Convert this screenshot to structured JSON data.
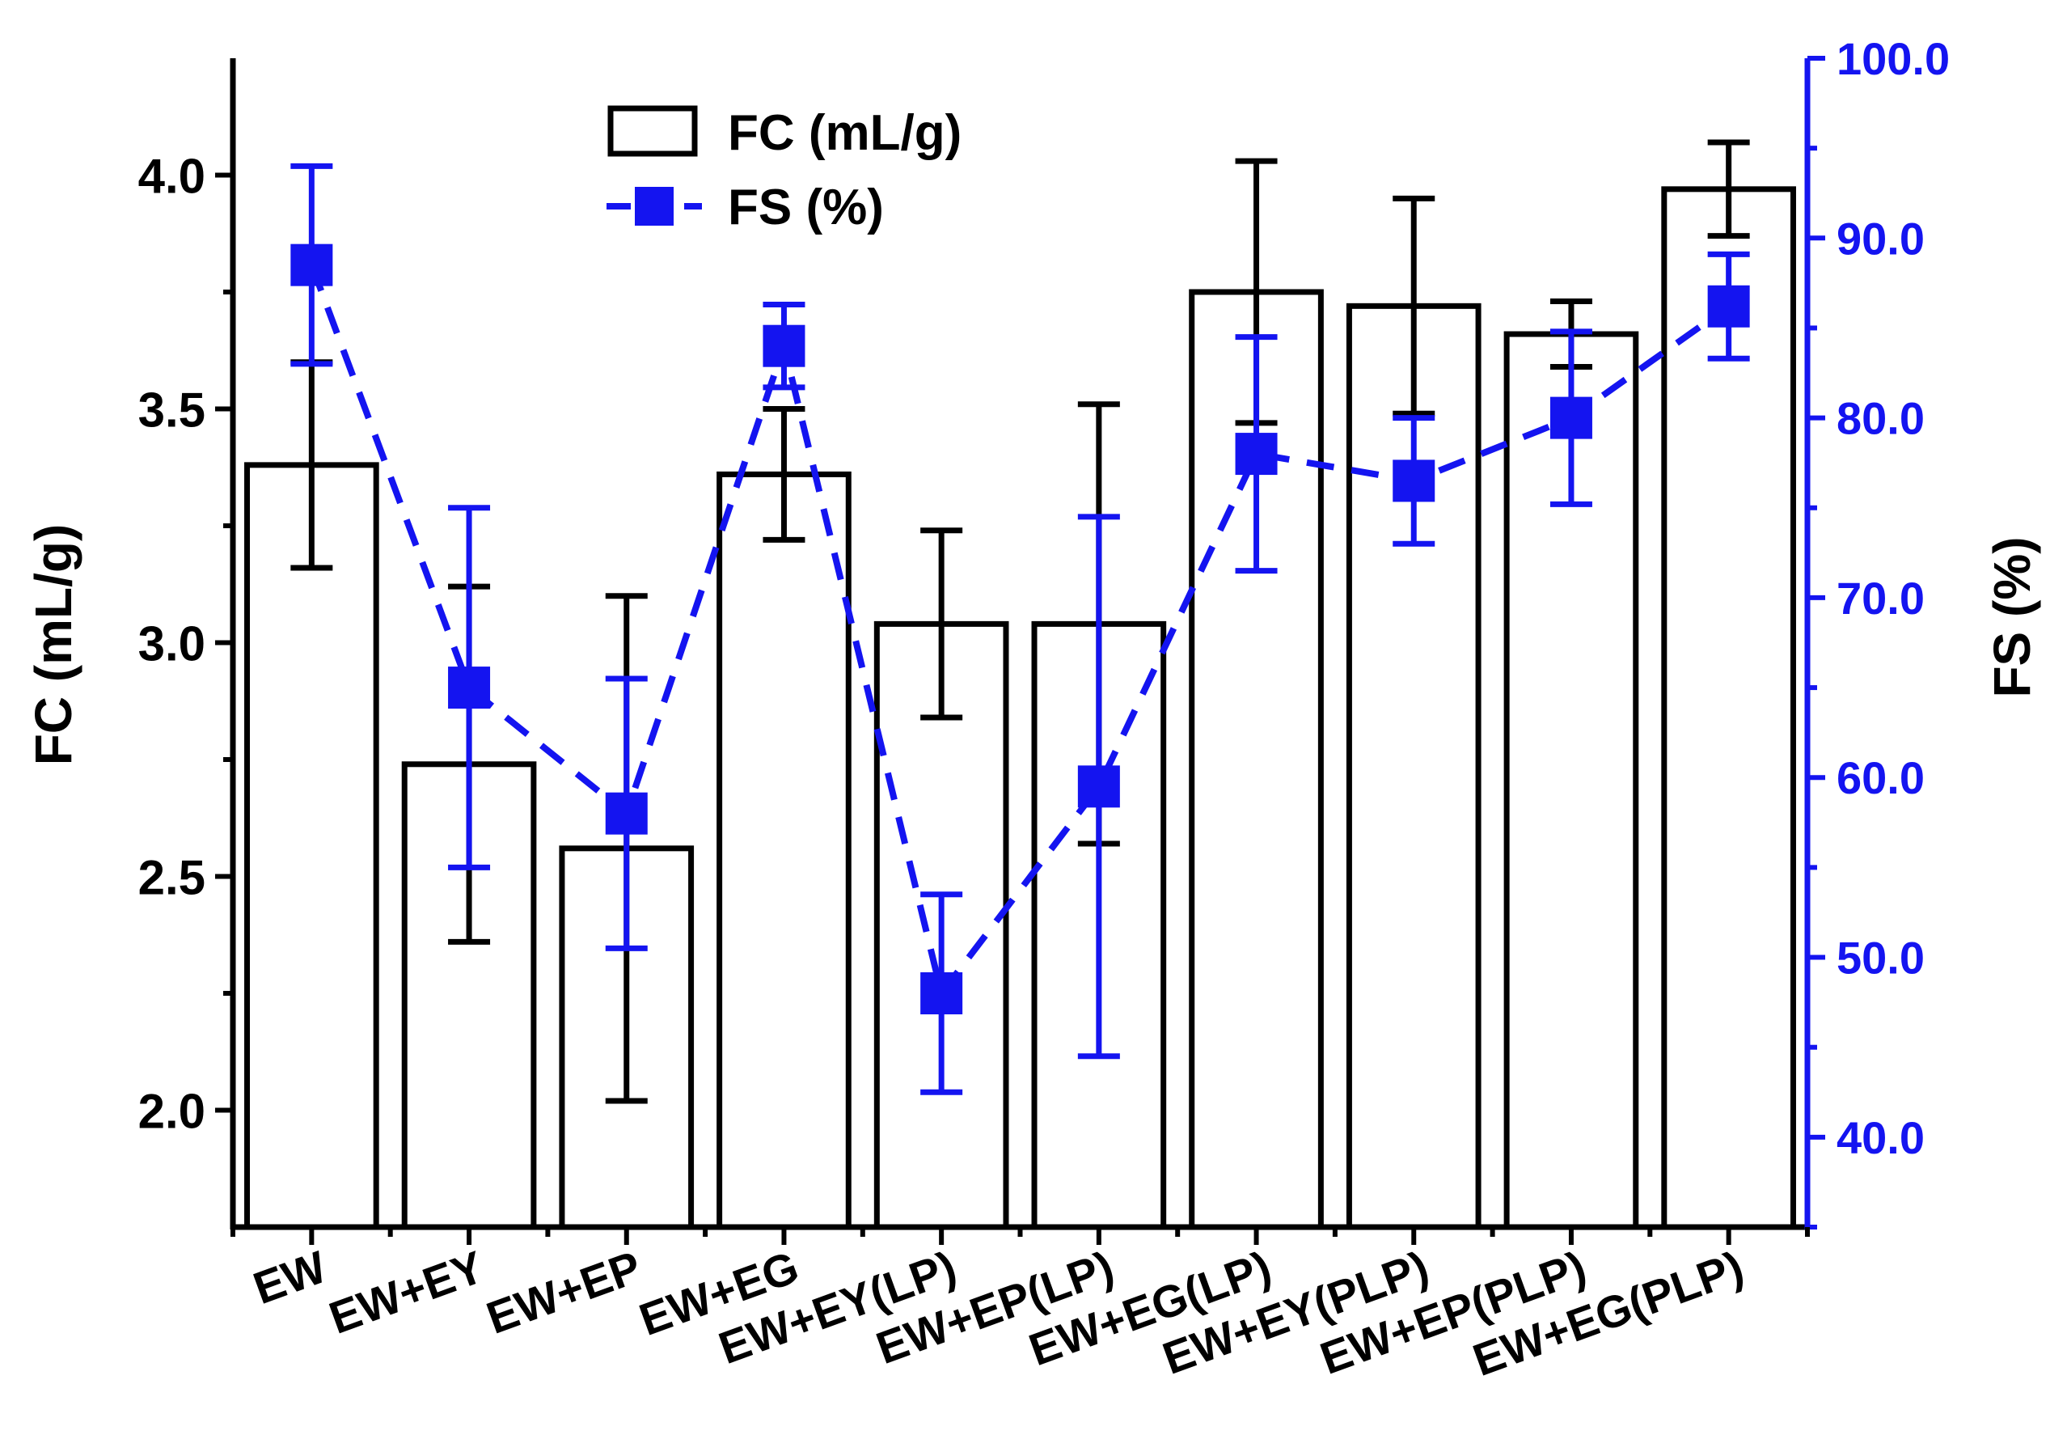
{
  "chart_data": {
    "type": "bar+line",
    "categories": [
      "EW",
      "EW+EY",
      "EW+EP",
      "EW+EG",
      "EW+EY(LP)",
      "EW+EP(LP)",
      "EW+EG(LP)",
      "EW+EY(PLP)",
      "EW+EP(PLP)",
      "EW+EG(PLP)"
    ],
    "series": [
      {
        "name": "FC (mL/g)",
        "kind": "bar",
        "axis": "left",
        "values": [
          3.38,
          2.74,
          2.56,
          3.36,
          3.04,
          3.04,
          3.75,
          3.72,
          3.66,
          3.97
        ],
        "errors": [
          0.22,
          0.38,
          0.54,
          0.14,
          0.2,
          0.47,
          0.28,
          0.23,
          0.07,
          0.1
        ],
        "color": "#000000"
      },
      {
        "name": "FS (%)",
        "kind": "line",
        "axis": "right",
        "values": [
          88.5,
          65.0,
          58.0,
          84.0,
          48.0,
          59.5,
          78.0,
          76.5,
          80.0,
          86.2
        ],
        "errors": [
          5.5,
          10.0,
          7.5,
          2.3,
          5.5,
          15.0,
          6.5,
          3.5,
          4.8,
          2.9
        ],
        "color": "#1414f0"
      }
    ],
    "ylabel": "FC (mL/g)",
    "y2label": "FS (%)",
    "ylim": [
      1.75,
      4.25
    ],
    "y2lim": [
      35.0,
      100.0
    ],
    "yticks": [
      "2.0",
      "2.5",
      "3.0",
      "3.5",
      "4.0"
    ],
    "y2ticks": [
      "40.0",
      "50.0",
      "60.0",
      "70.0",
      "80.0",
      "90.0",
      "100.0"
    ],
    "legend": {
      "position": "top-center",
      "entries": [
        "FC (mL/g)",
        "FS (%)"
      ]
    },
    "colors": {
      "axis": "#000000",
      "secondary": "#1414f0"
    }
  }
}
